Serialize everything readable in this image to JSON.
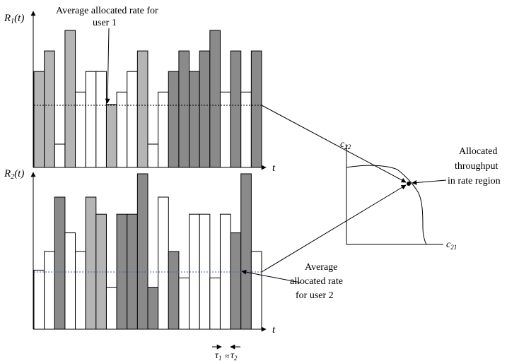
{
  "labels": {
    "r1_axis": {
      "main": "R",
      "sub": "1",
      "rest": "(t)"
    },
    "r2_axis": {
      "main": "R",
      "sub": "2",
      "rest": "(t)"
    },
    "t_axis_top": "t",
    "t_axis_bottom": "t",
    "avg_user1_line1": "Average allocated rate for",
    "avg_user1_line2": "user 1",
    "avg_user2_line1": "Average",
    "avg_user2_line2": "allocated rate",
    "avg_user2_line3": "for user 2",
    "alloc_line1": "Allocated",
    "alloc_line2": "throughput",
    "alloc_line3": "in rate region",
    "c22": {
      "main": "c",
      "sub": "22"
    },
    "c21": {
      "main": "c",
      "sub": "21"
    },
    "tau1": {
      "main": "τ",
      "sub": "1"
    },
    "tau2": {
      "main": "τ",
      "sub": "2"
    },
    "approx": "≈"
  },
  "colors": {
    "white": "#ffffff",
    "light": "#b5b5b5",
    "dark": "#8a8a8a",
    "avg_line_top": "#000000",
    "avg_line_bottom": "#3b5bd6"
  },
  "chart_data": {
    "type": "bar",
    "user1": {
      "fills": [
        "light",
        "light",
        "white",
        "light",
        "white",
        "white",
        "white",
        "light",
        "white",
        "white",
        "light",
        "white",
        "white",
        "dark",
        "dark",
        "dark",
        "dark",
        "dark",
        "white",
        "dark",
        "white",
        "dark"
      ],
      "values": [
        0.7,
        0.85,
        0.17,
        1.0,
        0.55,
        0.7,
        0.7,
        0.46,
        0.55,
        0.7,
        0.85,
        0.17,
        0.55,
        0.7,
        0.85,
        0.7,
        0.85,
        1.0,
        0.55,
        0.85,
        0.55,
        0.85
      ],
      "average": 0.5
    },
    "user2": {
      "fills": [
        "white",
        "white",
        "dark",
        "white",
        "white",
        "light",
        "light",
        "white",
        "dark",
        "dark",
        "dark",
        "dark",
        "white",
        "dark",
        "white",
        "white",
        "white",
        "white",
        "white",
        "dark",
        "dark",
        "white"
      ],
      "values": [
        0.38,
        0.5,
        0.85,
        0.62,
        0.5,
        0.85,
        0.74,
        0.27,
        0.74,
        0.74,
        1.0,
        0.27,
        0.85,
        0.5,
        0.33,
        0.74,
        0.74,
        0.33,
        0.74,
        0.62,
        1.0,
        0.5
      ],
      "average": 0.36
    }
  }
}
